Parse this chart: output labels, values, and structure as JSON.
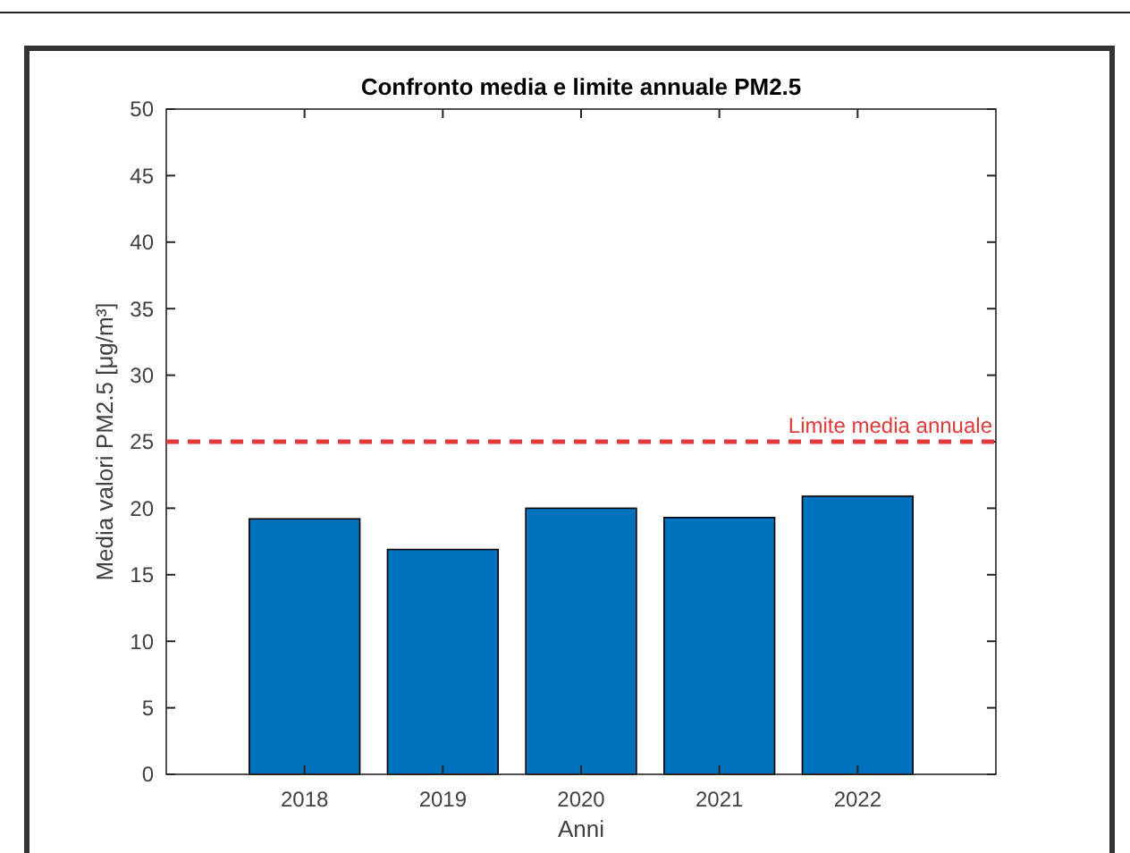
{
  "chart_data": {
    "type": "bar",
    "title": "Confronto media e limite annuale PM2.5",
    "xlabel": "Anni",
    "ylabel": "Media valori PM2.5 [μg/m³]",
    "categories": [
      "2018",
      "2019",
      "2020",
      "2021",
      "2022"
    ],
    "values": [
      19.2,
      16.9,
      20.0,
      19.3,
      20.9
    ],
    "color": "#0072bd",
    "ylim": [
      0,
      50
    ],
    "yticks": [
      0,
      5,
      10,
      15,
      20,
      25,
      30,
      35,
      40,
      45,
      50
    ],
    "grid": false,
    "ref_lines": [
      {
        "axis": "y",
        "value": 25,
        "label": "Limite media annuale",
        "color": "#e03a3a",
        "line_style": "dashed"
      }
    ]
  }
}
